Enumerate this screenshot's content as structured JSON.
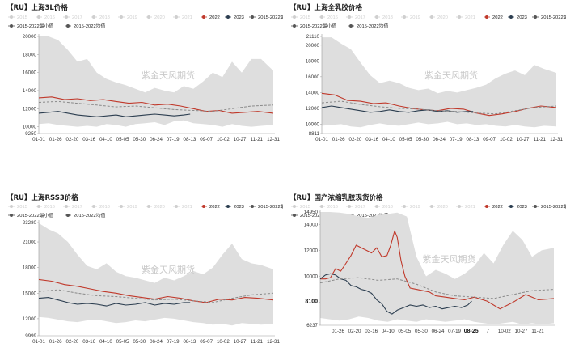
{
  "chart_data": [
    {
      "type": "line",
      "title": "【RU】上海3L价格",
      "watermark": "紫金天风期货",
      "ylim": [
        9250,
        20000
      ],
      "y_ticks": [
        "20000",
        "18000",
        "16000",
        "14000",
        "12000",
        "10000",
        "9250"
      ],
      "x_ticks": [
        "01-01",
        "01-26",
        "02-20",
        "03-16",
        "04-10",
        "05-05",
        "05-30",
        "06-24",
        "07-19",
        "08-13",
        "09-07",
        "10-02",
        "10-27",
        "11-21",
        "12-31"
      ],
      "legend_years": [
        "2015",
        "2016",
        "2017",
        "2018",
        "2019",
        "2020",
        "2021"
      ],
      "series": [
        {
          "name": "2022",
          "color": "#c0392b",
          "x": [
            0,
            20,
            40,
            60,
            80,
            100,
            120,
            140,
            160,
            180,
            200,
            220,
            240,
            260,
            280,
            300,
            320,
            340,
            364
          ],
          "values": [
            13200,
            13300,
            13000,
            13100,
            12900,
            13000,
            12800,
            12600,
            12700,
            12400,
            12500,
            12300,
            12000,
            11700,
            11800,
            11500,
            11600,
            11700,
            11500
          ]
        },
        {
          "name": "2023",
          "color": "#2c3e50",
          "x": [
            0,
            15,
            30,
            45,
            60,
            75,
            90,
            105,
            120,
            135,
            150,
            165,
            180,
            195,
            210,
            225,
            235
          ],
          "values": [
            11500,
            11600,
            11700,
            11500,
            11300,
            11200,
            11100,
            11200,
            11300,
            11100,
            11200,
            11300,
            11400,
            11300,
            11200,
            11300,
            11400
          ]
        },
        {
          "name": "2015-2022均值",
          "color": "#8a8a8a",
          "dashed": true,
          "x": [
            0,
            30,
            60,
            90,
            120,
            150,
            180,
            210,
            240,
            270,
            300,
            330,
            364
          ],
          "values": [
            12700,
            12800,
            12600,
            12400,
            12200,
            12300,
            12100,
            11900,
            11800,
            11700,
            12000,
            12300,
            12400
          ]
        }
      ],
      "band_x": [
        0,
        15,
        30,
        45,
        60,
        75,
        90,
        105,
        120,
        135,
        150,
        165,
        180,
        195,
        210,
        225,
        240,
        255,
        270,
        285,
        300,
        315,
        330,
        345,
        364
      ],
      "band_max": [
        20000,
        20000,
        19600,
        18500,
        17200,
        17500,
        16000,
        15300,
        14900,
        14600,
        14200,
        13800,
        14300,
        14000,
        13800,
        14500,
        14200,
        15000,
        16000,
        15500,
        17200,
        16000,
        17500,
        17500,
        16200
      ],
      "band_min": [
        10300,
        10400,
        10200,
        10100,
        10000,
        10100,
        10000,
        10300,
        10200,
        10000,
        10300,
        10400,
        10500,
        10200,
        10600,
        10700,
        10400,
        10300,
        10200,
        10000,
        10300,
        10100,
        10000,
        10100,
        10200
      ]
    },
    {
      "type": "line",
      "title": "【RU】上海全乳胶价格",
      "watermark": "紫金天风期货",
      "ylim": [
        8811,
        21110
      ],
      "y_ticks": [
        "21110",
        "20000",
        "18000",
        "16000",
        "14000",
        "12000",
        "10000",
        "8811"
      ],
      "x_ticks": [
        "01-01",
        "01-26",
        "02-20",
        "03-16",
        "04-10",
        "05-05",
        "05-30",
        "06-24",
        "07-19",
        "08-13",
        "09-07",
        "10-02",
        "10-27",
        "11-21",
        "12-31"
      ],
      "legend_years": [
        "2015",
        "2016",
        "2017",
        "2018",
        "2019",
        "2020",
        "2021"
      ],
      "series": [
        {
          "name": "2022",
          "color": "#c0392b",
          "x": [
            0,
            20,
            40,
            60,
            80,
            100,
            120,
            140,
            160,
            180,
            200,
            220,
            240,
            260,
            280,
            300,
            320,
            340,
            364
          ],
          "values": [
            13900,
            13700,
            13000,
            12900,
            12600,
            12700,
            12300,
            12000,
            11800,
            11700,
            12000,
            11900,
            11400,
            11100,
            11300,
            11600,
            12000,
            12300,
            12100
          ]
        },
        {
          "name": "2023",
          "color": "#2c3e50",
          "x": [
            0,
            15,
            30,
            45,
            60,
            75,
            90,
            105,
            120,
            135,
            150,
            165,
            180,
            195,
            210,
            225,
            235
          ],
          "values": [
            12100,
            12300,
            12100,
            11900,
            11700,
            11500,
            11600,
            11800,
            11600,
            11500,
            11700,
            11800,
            11600,
            11700,
            11500,
            11600,
            11600
          ]
        },
        {
          "name": "2015-2022均值",
          "color": "#8a8a8a",
          "dashed": true,
          "x": [
            0,
            30,
            60,
            90,
            120,
            150,
            180,
            210,
            240,
            270,
            300,
            330,
            364
          ],
          "values": [
            12700,
            12900,
            12500,
            12200,
            12000,
            11900,
            11700,
            11600,
            11400,
            11300,
            11700,
            12100,
            12300
          ]
        }
      ],
      "band_x": [
        0,
        15,
        30,
        45,
        60,
        75,
        90,
        105,
        120,
        135,
        150,
        165,
        180,
        195,
        210,
        225,
        240,
        255,
        270,
        285,
        300,
        315,
        330,
        345,
        364
      ],
      "band_max": [
        21000,
        21000,
        20200,
        19500,
        17800,
        16200,
        15200,
        15500,
        15200,
        14600,
        14300,
        14500,
        13900,
        14200,
        14000,
        14300,
        14600,
        15000,
        15800,
        16400,
        16800,
        16200,
        17500,
        17000,
        16500
      ],
      "band_min": [
        9800,
        9900,
        10000,
        9700,
        9600,
        9900,
        10100,
        9900,
        9800,
        10000,
        10200,
        10000,
        10100,
        10300,
        10000,
        10100,
        9900,
        10000,
        9800,
        9700,
        9900,
        9700,
        9600,
        9800,
        9700
      ]
    },
    {
      "type": "line",
      "title": "【RU】上海RSS3价格",
      "watermark": "紫金天风期货",
      "ylim": [
        9999,
        23280
      ],
      "y_ticks": [
        "23280",
        "21000",
        "18000",
        "15000",
        "12000",
        "9999"
      ],
      "x_ticks": [
        "01-01",
        "01-26",
        "02-20",
        "03-16",
        "04-10",
        "05-05",
        "05-30",
        "06-24",
        "07-19",
        "08-13",
        "09-07",
        "10-02",
        "10-27",
        "11-21",
        "12-31"
      ],
      "legend_years": [
        "2015",
        "2016",
        "2017",
        "2018",
        "2019",
        "2020",
        "2021"
      ],
      "series": [
        {
          "name": "2022",
          "color": "#c0392b",
          "x": [
            0,
            20,
            40,
            60,
            80,
            100,
            120,
            140,
            160,
            180,
            200,
            220,
            240,
            260,
            280,
            300,
            320,
            340,
            364
          ],
          "values": [
            16600,
            16400,
            16000,
            15800,
            15500,
            15200,
            15000,
            14700,
            14500,
            14300,
            14600,
            14400,
            14100,
            13900,
            14300,
            14200,
            14500,
            14400,
            14200
          ]
        },
        {
          "name": "2023",
          "color": "#2c3e50",
          "x": [
            0,
            15,
            30,
            45,
            60,
            75,
            90,
            105,
            120,
            135,
            150,
            165,
            180,
            195,
            210,
            225,
            235
          ],
          "values": [
            14400,
            14500,
            14200,
            13900,
            13700,
            13800,
            13700,
            13500,
            13800,
            13600,
            13700,
            13900,
            13600,
            13800,
            13700,
            13900,
            13900
          ]
        },
        {
          "name": "2015-2022均值",
          "color": "#8a8a8a",
          "dashed": true,
          "x": [
            0,
            30,
            60,
            90,
            120,
            150,
            180,
            210,
            240,
            270,
            300,
            330,
            364
          ],
          "values": [
            15200,
            15400,
            15000,
            14700,
            14600,
            14400,
            14200,
            14300,
            14100,
            13900,
            14400,
            14800,
            15000
          ]
        }
      ],
      "band_x": [
        0,
        15,
        30,
        45,
        60,
        75,
        90,
        105,
        120,
        135,
        150,
        165,
        180,
        195,
        210,
        225,
        240,
        255,
        270,
        285,
        300,
        315,
        330,
        345,
        364
      ],
      "band_max": [
        23200,
        22500,
        22000,
        21000,
        19500,
        18200,
        17800,
        18500,
        17500,
        17000,
        16800,
        16500,
        16200,
        16800,
        16500,
        17000,
        17600,
        17200,
        18000,
        19500,
        20800,
        19000,
        18500,
        18300,
        17800
      ],
      "band_min": [
        12200,
        12100,
        11900,
        11700,
        11600,
        11800,
        11900,
        11700,
        11500,
        11600,
        11800,
        11700,
        11900,
        12100,
        12000,
        11800,
        11600,
        11500,
        11300,
        11400,
        11200,
        11500,
        11400,
        11300,
        11400
      ]
    },
    {
      "type": "line",
      "title": "【RU】国产浓缩乳胶现货价格",
      "watermark": "紫金天风期货",
      "ylim": [
        6237,
        14950
      ],
      "y_ticks": [
        "14950",
        "14000",
        "12000",
        "10000",
        "8000",
        "6237"
      ],
      "highlight_y": "8100",
      "x_ticks": [
        "01-26",
        "02-20",
        "03-16",
        "04-10",
        "05-05",
        "05-30",
        "06-24",
        "07-19",
        "08-25",
        "7",
        "10-02",
        "10-27",
        "11-21"
      ],
      "highlight_x": "08-25",
      "legend_years": [
        "2015",
        "2016",
        "2017",
        "2018",
        "2019",
        "2020",
        "2021"
      ],
      "series": [
        {
          "name": "2022",
          "color": "#c0392b",
          "x": [
            0,
            8,
            16,
            24,
            32,
            40,
            48,
            56,
            64,
            72,
            80,
            88,
            96,
            104,
            110,
            116,
            120,
            126,
            132,
            140,
            150,
            160,
            170,
            180,
            195,
            210,
            225,
            240,
            260,
            280,
            300,
            320,
            340,
            364
          ],
          "values": [
            9800,
            9800,
            9900,
            10600,
            10400,
            11000,
            11600,
            12400,
            12200,
            12000,
            11800,
            12200,
            11500,
            11600,
            12400,
            13500,
            13000,
            11200,
            10000,
            9100,
            9000,
            8900,
            8800,
            8500,
            8400,
            8300,
            8200,
            8400,
            8100,
            7500,
            8000,
            8600,
            8200,
            8300
          ]
        },
        {
          "name": "2023",
          "color": "#2c3e50",
          "x": [
            0,
            8,
            16,
            24,
            32,
            40,
            48,
            56,
            64,
            72,
            80,
            88,
            96,
            104,
            112,
            120,
            130,
            140,
            150,
            160,
            170,
            180,
            190,
            200,
            210,
            220,
            230,
            236
          ],
          "values": [
            9800,
            10100,
            10200,
            10100,
            9800,
            9700,
            9300,
            9200,
            9000,
            8900,
            8700,
            8200,
            7900,
            7300,
            7100,
            7400,
            7600,
            7800,
            7700,
            7800,
            7600,
            7700,
            7500,
            7600,
            7700,
            7600,
            7800,
            8100
          ]
        },
        {
          "name": "2015-2022均值",
          "color": "#8a8a8a",
          "dashed": true,
          "x": [
            0,
            30,
            60,
            90,
            120,
            150,
            180,
            210,
            240,
            270,
            300,
            330,
            364
          ],
          "values": [
            9500,
            9800,
            9900,
            9700,
            9800,
            9400,
            8800,
            8500,
            8400,
            8300,
            8600,
            8900,
            9000
          ]
        }
      ],
      "band_x": [
        0,
        15,
        30,
        45,
        60,
        75,
        90,
        105,
        120,
        135,
        150,
        165,
        180,
        195,
        210,
        225,
        240,
        255,
        270,
        285,
        300,
        315,
        330,
        345,
        364
      ],
      "band_max": [
        14950,
        14950,
        14900,
        14800,
        14600,
        14500,
        14700,
        14800,
        14900,
        14600,
        11500,
        10000,
        10500,
        10200,
        9800,
        10200,
        10800,
        11800,
        11000,
        12400,
        13500,
        12800,
        11500,
        12000,
        12200
      ],
      "band_min": [
        6800,
        6700,
        6600,
        6700,
        6900,
        6800,
        6600,
        6500,
        6700,
        6600,
        6500,
        6700,
        6600,
        6500,
        6600,
        6700,
        6500,
        6400,
        6300,
        6400,
        6500,
        6300,
        6400,
        6300,
        6400
      ]
    }
  ],
  "legend_labels": {
    "series_2022": "2022",
    "series_2023": "2023",
    "max": "2015-2022最大值",
    "min": "2015-2022最小值",
    "mean": "2015-2022均值"
  },
  "colors": {
    "band": "#dedede",
    "legend_faded": "#cfcfcf",
    "axis": "#999999"
  }
}
